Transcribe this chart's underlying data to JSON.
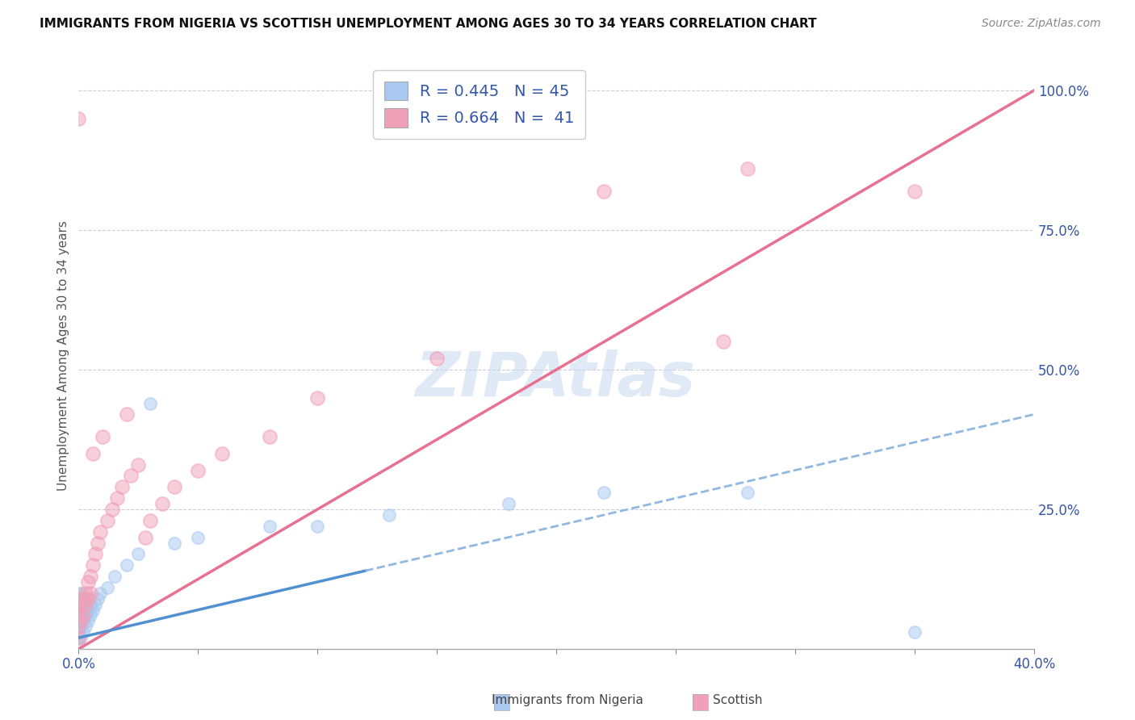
{
  "title": "IMMIGRANTS FROM NIGERIA VS SCOTTISH UNEMPLOYMENT AMONG AGES 30 TO 34 YEARS CORRELATION CHART",
  "source": "Source: ZipAtlas.com",
  "ylabel_label": "Unemployment Among Ages 30 to 34 years",
  "legend_blue_R": "R = 0.445",
  "legend_blue_N": "N = 45",
  "legend_pink_R": "R = 0.664",
  "legend_pink_N": "N =  41",
  "legend_label1": "Immigrants from Nigeria",
  "legend_label2": "Scottish",
  "blue_color": "#A8C8F0",
  "pink_color": "#F0A0B8",
  "trend_blue_solid_color": "#5090D0",
  "trend_blue_dash_color": "#90B8E0",
  "trend_pink_color": "#E87090",
  "watermark": "ZIPAtlas",
  "watermark_color": "#C8D8F0",
  "blue_x": [
    0.0,
    0.0,
    0.0,
    0.0,
    0.0,
    0.0,
    0.0,
    0.0,
    0.0,
    0.0,
    0.001,
    0.001,
    0.001,
    0.001,
    0.001,
    0.002,
    0.002,
    0.002,
    0.002,
    0.003,
    0.003,
    0.003,
    0.004,
    0.004,
    0.004,
    0.005,
    0.005,
    0.006,
    0.007,
    0.008,
    0.009,
    0.012,
    0.015,
    0.02,
    0.025,
    0.03,
    0.04,
    0.05,
    0.08,
    0.1,
    0.13,
    0.18,
    0.22,
    0.28,
    0.35
  ],
  "blue_y": [
    0.01,
    0.02,
    0.03,
    0.04,
    0.05,
    0.06,
    0.07,
    0.08,
    0.09,
    0.1,
    0.02,
    0.04,
    0.06,
    0.08,
    0.1,
    0.03,
    0.05,
    0.07,
    0.09,
    0.04,
    0.06,
    0.08,
    0.05,
    0.07,
    0.09,
    0.06,
    0.08,
    0.07,
    0.08,
    0.09,
    0.1,
    0.11,
    0.13,
    0.15,
    0.17,
    0.44,
    0.19,
    0.2,
    0.22,
    0.22,
    0.24,
    0.26,
    0.28,
    0.28,
    0.03
  ],
  "pink_x": [
    0.0,
    0.0,
    0.0,
    0.0,
    0.0,
    0.001,
    0.001,
    0.002,
    0.002,
    0.003,
    0.003,
    0.004,
    0.004,
    0.005,
    0.005,
    0.006,
    0.006,
    0.007,
    0.008,
    0.009,
    0.01,
    0.012,
    0.014,
    0.016,
    0.018,
    0.02,
    0.022,
    0.025,
    0.028,
    0.03,
    0.035,
    0.04,
    0.05,
    0.06,
    0.08,
    0.1,
    0.15,
    0.22,
    0.28,
    0.35,
    0.27
  ],
  "pink_y": [
    0.02,
    0.04,
    0.06,
    0.08,
    0.95,
    0.05,
    0.08,
    0.06,
    0.09,
    0.08,
    0.1,
    0.09,
    0.12,
    0.1,
    0.13,
    0.15,
    0.35,
    0.17,
    0.19,
    0.21,
    0.38,
    0.23,
    0.25,
    0.27,
    0.29,
    0.42,
    0.31,
    0.33,
    0.2,
    0.23,
    0.26,
    0.29,
    0.32,
    0.35,
    0.38,
    0.45,
    0.52,
    0.82,
    0.86,
    0.82,
    0.55
  ],
  "xmin": 0.0,
  "xmax": 0.4,
  "ymin": 0.0,
  "ymax": 1.05,
  "blue_trend_x0": 0.0,
  "blue_trend_y0": 0.02,
  "blue_trend_x1": 0.4,
  "blue_trend_y1": 0.42,
  "pink_trend_x0": 0.0,
  "pink_trend_y0": 0.0,
  "pink_trend_x1": 0.4,
  "pink_trend_y1": 1.0
}
